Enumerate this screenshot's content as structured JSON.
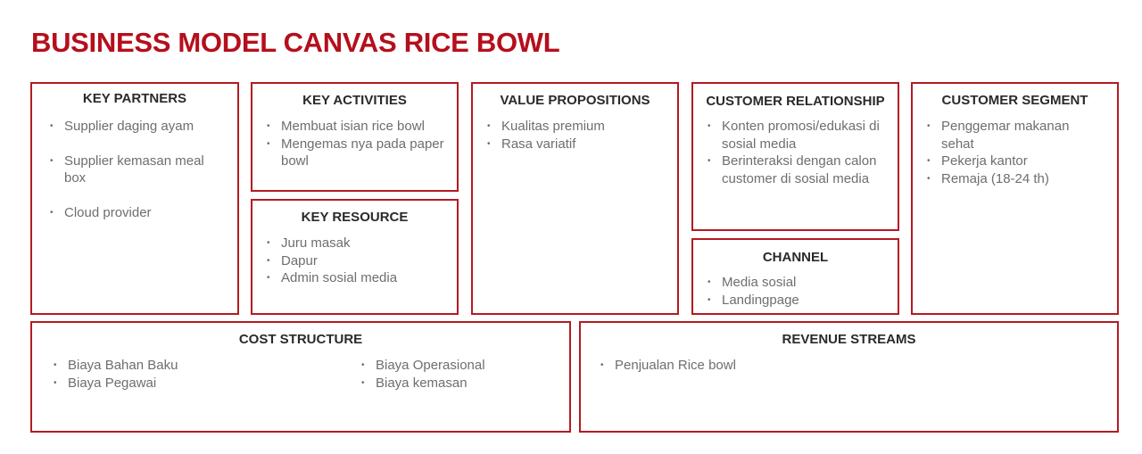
{
  "title": "BUSINESS MODEL CANVAS RICE BOWL",
  "colors": {
    "accent": "#b50f1c",
    "border": "#b51a22",
    "heading": "#2a2a2a",
    "body": "#6e6e6e"
  },
  "key_partners": {
    "title": "KEY PARTNERS",
    "items": [
      "Supplier daging ayam",
      "Supplier kemasan meal box",
      "Cloud provider"
    ]
  },
  "key_activities": {
    "title": "KEY ACTIVITIES",
    "items": [
      "Membuat isian rice bowl",
      "Mengemas nya pada paper bowl"
    ]
  },
  "key_resource": {
    "title": "KEY RESOURCE",
    "items": [
      "Juru masak",
      "Dapur",
      "Admin sosial media"
    ]
  },
  "value_propositions": {
    "title": "VALUE PROPOSITIONS",
    "items": [
      "Kualitas premium",
      "Rasa variatif"
    ]
  },
  "customer_relationship": {
    "title": "CUSTOMER RELATIONSHIP",
    "items": [
      "Konten promosi/edukasi di sosial media",
      "Berinteraksi dengan calon customer di sosial media"
    ]
  },
  "channel": {
    "title": "CHANNEL",
    "items": [
      "Media sosial",
      "Landingpage"
    ]
  },
  "customer_segment": {
    "title": "CUSTOMER SEGMENT",
    "items": [
      "Penggemar makanan sehat",
      "Pekerja kantor",
      "Remaja (18-24 th)"
    ]
  },
  "cost_structure": {
    "title": "COST STRUCTURE",
    "left_items": [
      "Biaya Bahan Baku",
      "Biaya Pegawai"
    ],
    "right_items": [
      "Biaya Operasional",
      "Biaya kemasan"
    ]
  },
  "revenue_streams": {
    "title": "REVENUE STREAMS",
    "items": [
      "Penjualan Rice bowl"
    ]
  }
}
